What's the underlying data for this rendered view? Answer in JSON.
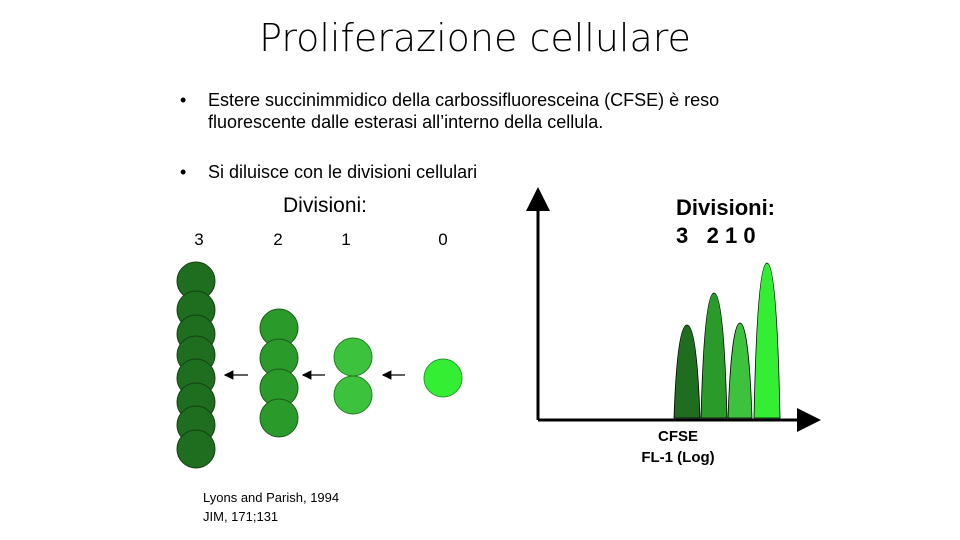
{
  "title": "Proliferazione cellulare",
  "bullets": [
    "Estere succinimmidico della carbossifluoresceina (CFSE) è reso fluorescente dalle esterasi all’interno della cellula.",
    "Si diluisce con le divisioni cellulari"
  ],
  "left_panel": {
    "heading": "Divisioni:",
    "columns": [
      "3",
      "2",
      "1",
      "0"
    ]
  },
  "right_panel": {
    "heading": "Divisioni:",
    "generations": [
      "3",
      "2",
      "1",
      "0"
    ],
    "axis_label": [
      "CFSE",
      "FL-1 (Log)"
    ]
  },
  "citation": [
    "Lyons and Parish, 1994",
    "JIM, 171;131"
  ]
}
